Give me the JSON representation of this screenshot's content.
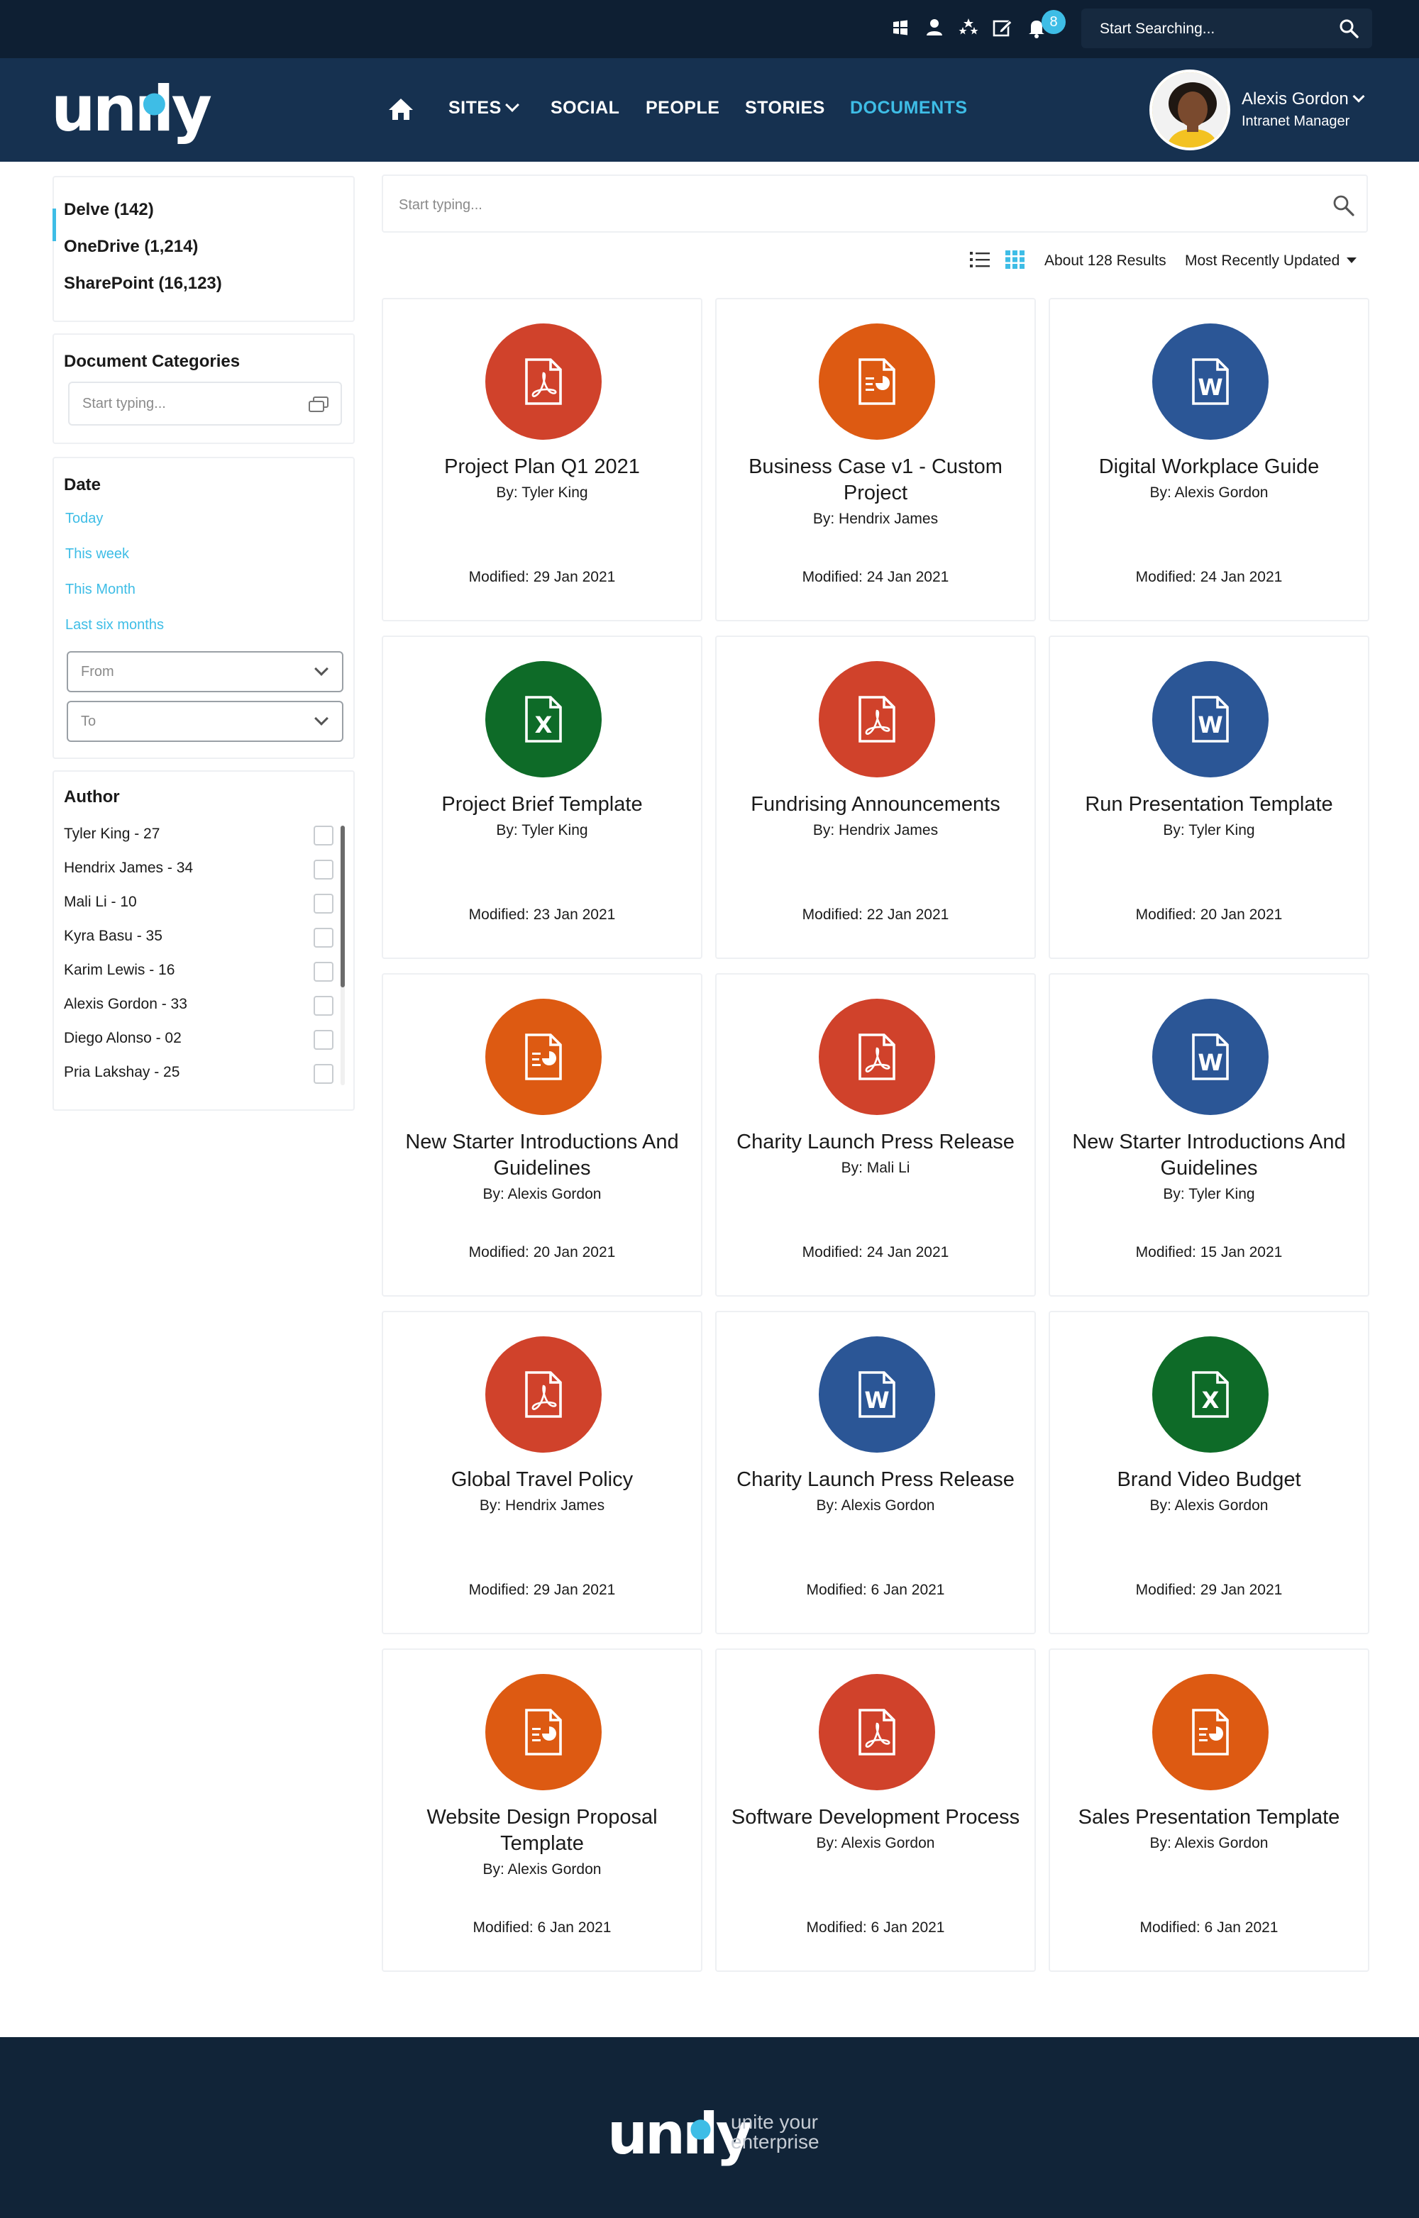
{
  "topbar": {
    "icons": [
      "windows-icon",
      "person-icon",
      "stars-icon",
      "edit-icon",
      "bell-icon"
    ],
    "notification_count": "8",
    "search_placeholder": "Start Searching..."
  },
  "header": {
    "logo": "unily",
    "nav": [
      {
        "label": "SITES",
        "has_dropdown": true
      },
      {
        "label": "SOCIAL"
      },
      {
        "label": "PEOPLE"
      },
      {
        "label": "STORIES"
      },
      {
        "label": "DOCUMENTS",
        "active": true
      }
    ],
    "user": {
      "name": "Alexis Gordon",
      "role": "Intranet Manager"
    }
  },
  "sidebar": {
    "sources": [
      {
        "label": "Delve (142)"
      },
      {
        "label": "OneDrive (1,214)",
        "active": true
      },
      {
        "label": "SharePoint (16,123)"
      }
    ],
    "categories": {
      "title": "Document Categories",
      "placeholder": "Start typing..."
    },
    "date": {
      "title": "Date",
      "links": [
        "Today",
        "This week",
        "This Month",
        "Last six months"
      ],
      "from": "From",
      "to": "To"
    },
    "author": {
      "title": "Author",
      "items": [
        "Tyler King - 27",
        "Hendrix James - 34",
        "Mali Li - 10",
        "Kyra Basu - 35",
        "Karim Lewis - 16",
        "Alexis Gordon - 33",
        "Diego Alonso - 02",
        "Pria Lakshay - 25"
      ]
    }
  },
  "main": {
    "search_placeholder": "Start typing...",
    "results": "About 128 Results",
    "sort": "Most Recently Updated",
    "documents": [
      {
        "type": "pdf",
        "title": "Project Plan Q1 2021",
        "author": "By: Tyler King",
        "modified": "Modified: 29 Jan 2021"
      },
      {
        "type": "ppt",
        "title": "Business Case v1 - Custom Project",
        "author": "By: Hendrix James",
        "modified": "Modified: 24 Jan 2021"
      },
      {
        "type": "word",
        "title": "Digital Workplace Guide",
        "author": "By: Alexis Gordon",
        "modified": "Modified: 24 Jan 2021"
      },
      {
        "type": "excel",
        "title": "Project Brief Template",
        "author": "By: Tyler King",
        "modified": "Modified: 23 Jan 2021"
      },
      {
        "type": "pdf",
        "title": "Fundrising Announcements",
        "author": "By: Hendrix James",
        "modified": "Modified: 22 Jan 2021"
      },
      {
        "type": "word",
        "title": "Run Presentation Template",
        "author": "By: Tyler King",
        "modified": "Modified: 20 Jan 2021"
      },
      {
        "type": "ppt",
        "title": "New Starter Introductions And Guidelines",
        "author": "By: Alexis Gordon",
        "modified": "Modified: 20 Jan 2021"
      },
      {
        "type": "pdf",
        "title": "Charity Launch Press Release",
        "author": "By: Mali Li",
        "modified": "Modified: 24 Jan 2021"
      },
      {
        "type": "word",
        "title": "New Starter Introductions And Guidelines",
        "author": "By: Tyler King",
        "modified": "Modified: 15 Jan 2021"
      },
      {
        "type": "pdf",
        "title": "Global Travel Policy",
        "author": "By: Hendrix James",
        "modified": "Modified: 29 Jan 2021"
      },
      {
        "type": "word",
        "title": "Charity Launch Press Release",
        "author": "By: Alexis Gordon",
        "modified": "Modified: 6 Jan 2021"
      },
      {
        "type": "excel",
        "title": "Brand Video Budget",
        "author": "By: Alexis Gordon",
        "modified": "Modified: 29 Jan 2021"
      },
      {
        "type": "ppt",
        "title": "Website Design Proposal Template",
        "author": "By: Alexis Gordon",
        "modified": "Modified: 6 Jan 2021"
      },
      {
        "type": "pdf",
        "title": "Software Development Process",
        "author": "By: Alexis Gordon",
        "modified": "Modified: 6 Jan 2021"
      },
      {
        "type": "ppt",
        "title": "Sales Presentation Template",
        "author": "By: Alexis Gordon",
        "modified": "Modified: 6 Jan 2021"
      }
    ]
  },
  "footer": {
    "logo": "unily",
    "tagline_line1": "unite your",
    "tagline_line2": "enterprise"
  },
  "colors": {
    "pdf": "#d0422b",
    "ppt": "#dd5a12",
    "word": "#2b5696",
    "excel": "#0e6b28",
    "accent": "#3ebde6",
    "header": "#163150"
  }
}
